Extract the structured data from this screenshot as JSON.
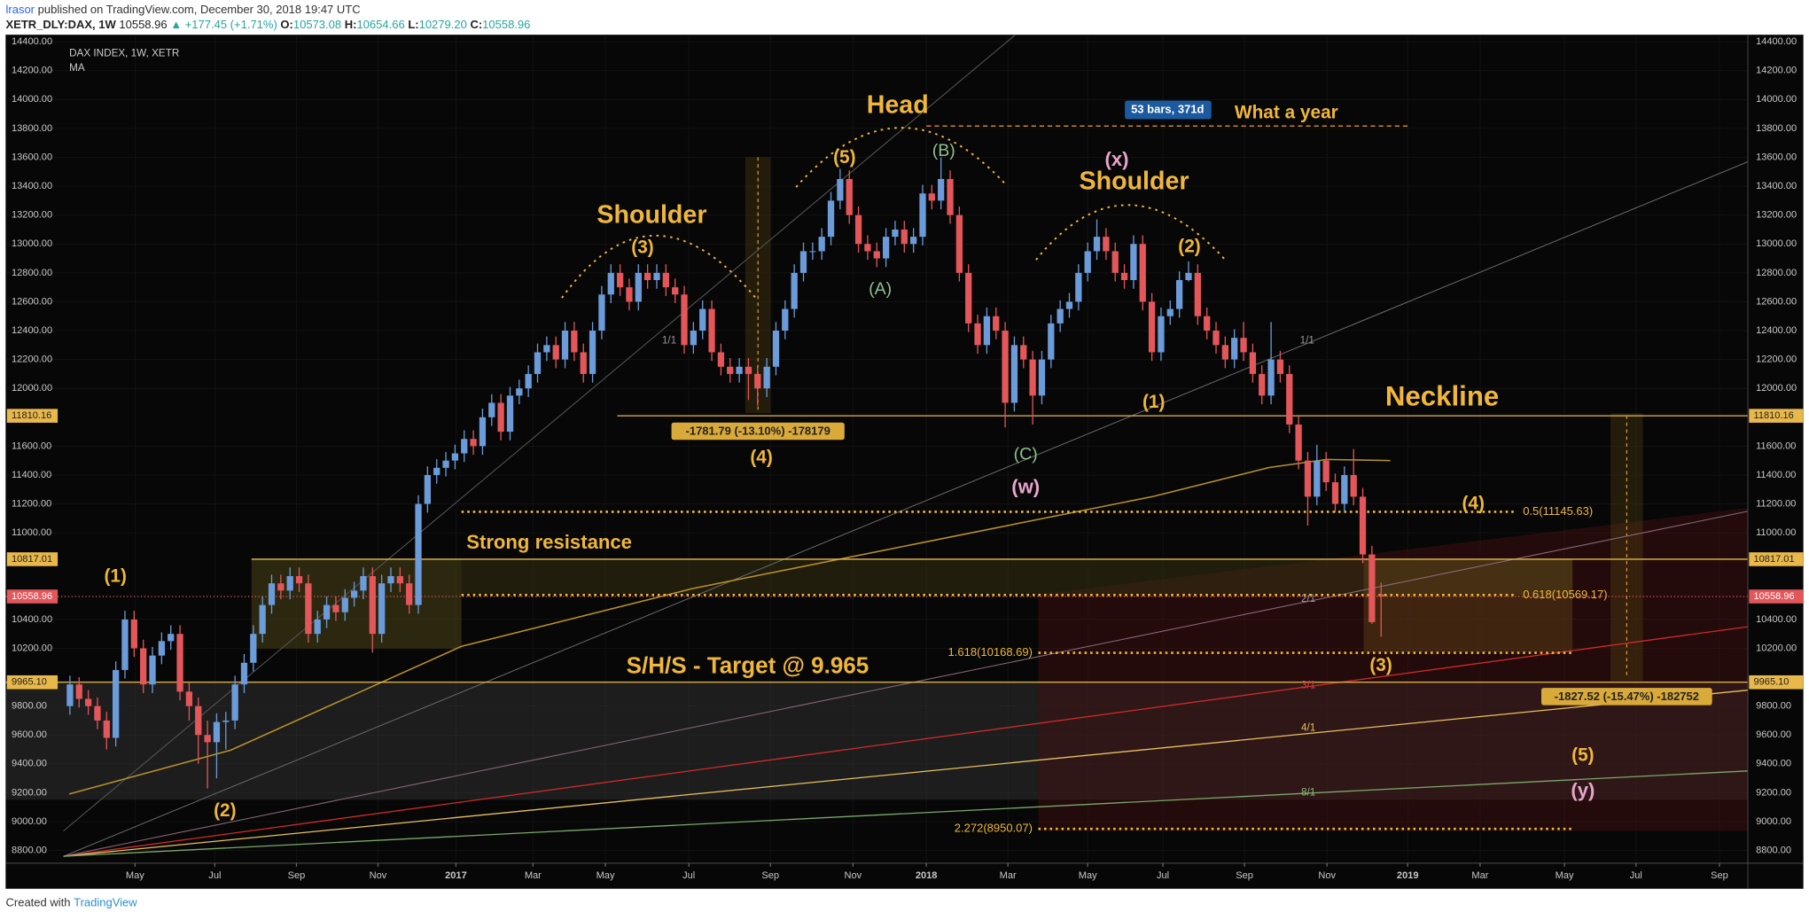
{
  "header": {
    "author": "lrasor",
    "published": "published on TradingView.com, December 30, 2018 19:47 UTC",
    "symbol": "XETR_DLY:DAX, 1W",
    "price": "10558.96",
    "change": "▲ +177.45 (+1.71%)",
    "ohlc": [
      {
        "label": "O:",
        "value": "10573.08"
      },
      {
        "label": "H:",
        "value": "10654.66"
      },
      {
        "label": "L:",
        "value": "10279.20"
      },
      {
        "label": "C:",
        "value": "10558.96"
      }
    ]
  },
  "footer": {
    "text": "Created with",
    "brand": "TradingView"
  },
  "chart_data": {
    "type": "candlestick",
    "title": "DAX INDEX, 1W, XETR",
    "indicator": "MA",
    "up_color": "#6b9bd8",
    "down_color": "#e3565a",
    "grid": true,
    "xlim": [
      -7,
      183
    ],
    "ylim": [
      8712,
      14448
    ],
    "xticks": [
      {
        "value": 7.1,
        "label": "May"
      },
      {
        "value": 15.8,
        "label": "Jul"
      },
      {
        "value": 24.7,
        "label": "Sep"
      },
      {
        "value": 33.6,
        "label": "Nov"
      },
      {
        "value": 42.1,
        "label": "2017"
      },
      {
        "value": 50.5,
        "label": "Mar"
      },
      {
        "value": 58.4,
        "label": "May"
      },
      {
        "value": 67.5,
        "label": "Jul"
      },
      {
        "value": 76.4,
        "label": "Sep"
      },
      {
        "value": 85.4,
        "label": "Nov"
      },
      {
        "value": 93.4,
        "label": "2018"
      },
      {
        "value": 102.3,
        "label": "Mar"
      },
      {
        "value": 111.0,
        "label": "May"
      },
      {
        "value": 119.2,
        "label": "Jul"
      },
      {
        "value": 128.1,
        "label": "Sep"
      },
      {
        "value": 137.1,
        "label": "Nov"
      },
      {
        "value": 145.9,
        "label": "2019"
      },
      {
        "value": 153.8,
        "label": "Mar"
      },
      {
        "value": 163.0,
        "label": "May"
      },
      {
        "value": 170.8,
        "label": "Jul"
      },
      {
        "value": 179.9,
        "label": "Sep"
      }
    ],
    "yticks": [
      {
        "value": 14400,
        "label": "14400.00"
      },
      {
        "value": 14200,
        "label": "14200.00"
      },
      {
        "value": 14000,
        "label": "14000.00"
      },
      {
        "value": 13800,
        "label": "13800.00"
      },
      {
        "value": 13600,
        "label": "13600.00"
      },
      {
        "value": 13400,
        "label": "13400.00"
      },
      {
        "value": 13200,
        "label": "13200.00"
      },
      {
        "value": 13000,
        "label": "13000.00"
      },
      {
        "value": 12800,
        "label": "12800.00"
      },
      {
        "value": 12600,
        "label": "12600.00"
      },
      {
        "value": 12400,
        "label": "12400.00"
      },
      {
        "value": 12200,
        "label": "12200.00"
      },
      {
        "value": 12000,
        "label": "12000.00"
      },
      {
        "value": 11600,
        "label": "11600.00"
      },
      {
        "value": 11400,
        "label": "11400.00"
      },
      {
        "value": 11200,
        "label": "11200.00"
      },
      {
        "value": 11000,
        "label": "11000.00"
      },
      {
        "value": 10400,
        "label": "10400.00"
      },
      {
        "value": 10200,
        "label": "10200.00"
      },
      {
        "value": 9800,
        "label": "9800.00"
      },
      {
        "value": 9600,
        "label": "9600.00"
      },
      {
        "value": 9400,
        "label": "9400.00"
      },
      {
        "value": 9200,
        "label": "9200.00"
      },
      {
        "value": 9000,
        "label": "9000.00"
      },
      {
        "value": 8800,
        "label": "8800.00"
      }
    ],
    "levels": [
      {
        "value": 11810.16,
        "label": "11810.16",
        "color": "#e8b84a"
      },
      {
        "value": 10817.01,
        "label": "10817.01",
        "color": "#e8b84a"
      },
      {
        "value": 10558.96,
        "label": "10558.96",
        "color": "#e3565a"
      },
      {
        "value": 9965.1,
        "label": "9965.10",
        "color": "#e8b84a"
      }
    ],
    "fibs": [
      {
        "value": 11145.63,
        "label": "0.5(11145.63)"
      },
      {
        "value": 10569.17,
        "label": "0.618(10569.17)"
      },
      {
        "value": 10168.69,
        "label": "1.618(10168.69)"
      },
      {
        "value": 8950.07,
        "label": "2.272(8950.07)"
      }
    ],
    "annotations": [
      "Shoulder",
      "Head",
      "Shoulder",
      "Neckline",
      "What a year",
      "53 bars, 371d",
      "Strong resistance",
      "S/H/S - Target @ 9.965",
      "-1781.79 (-13.10%) -178179",
      "-1827.52 (-15.47%) -182752",
      "(1)",
      "(2)",
      "(3)",
      "(4)",
      "(5)",
      "(A)",
      "(B)",
      "(C)",
      "(w)",
      "(x)",
      "(1)",
      "(2)",
      "(4)",
      "(3)",
      "(5)",
      "(y)",
      "1/1",
      "2/1",
      "3/1",
      "4/1",
      "8/1",
      "1/1"
    ],
    "candles": [
      [
        9800,
        10010,
        9740,
        9950
      ],
      [
        9950,
        10000,
        9790,
        9850
      ],
      [
        9850,
        9910,
        9740,
        9800
      ],
      [
        9800,
        9860,
        9640,
        9700
      ],
      [
        9700,
        9760,
        9500,
        9580
      ],
      [
        9580,
        10110,
        9520,
        10050
      ],
      [
        10050,
        10460,
        9990,
        10400
      ],
      [
        10400,
        10460,
        10140,
        10200
      ],
      [
        10200,
        10260,
        9890,
        9950
      ],
      [
        9950,
        10210,
        9890,
        10150
      ],
      [
        10150,
        10310,
        10090,
        10250
      ],
      [
        10250,
        10360,
        10190,
        10300
      ],
      [
        10300,
        10360,
        9840,
        9900
      ],
      [
        9900,
        9960,
        9700,
        9800
      ],
      [
        9800,
        9860,
        9400,
        9600
      ],
      [
        9600,
        9700,
        9230,
        9550
      ],
      [
        9550,
        9750,
        9300,
        9690
      ],
      [
        9690,
        9760,
        9500,
        9700
      ],
      [
        9700,
        10010,
        9640,
        9950
      ],
      [
        9950,
        10160,
        9890,
        10100
      ],
      [
        10100,
        10360,
        10040,
        10300
      ],
      [
        10300,
        10560,
        10240,
        10500
      ],
      [
        10500,
        10710,
        10440,
        10650
      ],
      [
        10650,
        10710,
        10540,
        10600
      ],
      [
        10600,
        10760,
        10540,
        10700
      ],
      [
        10700,
        10760,
        10590,
        10650
      ],
      [
        10650,
        10710,
        10240,
        10300
      ],
      [
        10300,
        10460,
        10240,
        10400
      ],
      [
        10400,
        10560,
        10340,
        10500
      ],
      [
        10500,
        10560,
        10390,
        10450
      ],
      [
        10450,
        10610,
        10390,
        10550
      ],
      [
        10550,
        10660,
        10490,
        10600
      ],
      [
        10600,
        10760,
        10540,
        10700
      ],
      [
        10700,
        10760,
        10170,
        10300
      ],
      [
        10300,
        10710,
        10240,
        10650
      ],
      [
        10650,
        10760,
        10590,
        10700
      ],
      [
        10700,
        10760,
        10590,
        10650
      ],
      [
        10650,
        10710,
        10440,
        10500
      ],
      [
        10500,
        11260,
        10440,
        11200
      ],
      [
        11200,
        11460,
        11140,
        11400
      ],
      [
        11400,
        11510,
        11340,
        11450
      ],
      [
        11450,
        11560,
        11390,
        11500
      ],
      [
        11500,
        11610,
        11440,
        11550
      ],
      [
        11550,
        11710,
        11490,
        11650
      ],
      [
        11650,
        11710,
        11540,
        11600
      ],
      [
        11600,
        11860,
        11540,
        11800
      ],
      [
        11800,
        11960,
        11740,
        11900
      ],
      [
        11900,
        11960,
        11640,
        11700
      ],
      [
        11700,
        12010,
        11640,
        11950
      ],
      [
        11950,
        12060,
        11890,
        12000
      ],
      [
        12000,
        12160,
        11940,
        12100
      ],
      [
        12100,
        12310,
        12040,
        12250
      ],
      [
        12250,
        12360,
        12190,
        12300
      ],
      [
        12300,
        12360,
        12140,
        12200
      ],
      [
        12200,
        12460,
        12140,
        12400
      ],
      [
        12400,
        12460,
        12190,
        12250
      ],
      [
        12250,
        12310,
        12040,
        12100
      ],
      [
        12100,
        12460,
        12040,
        12400
      ],
      [
        12400,
        12710,
        12340,
        12650
      ],
      [
        12650,
        12860,
        12590,
        12800
      ],
      [
        12800,
        12860,
        12640,
        12700
      ],
      [
        12700,
        12760,
        12540,
        12600
      ],
      [
        12600,
        12860,
        12540,
        12800
      ],
      [
        12800,
        12860,
        12690,
        12750
      ],
      [
        12750,
        12860,
        12690,
        12800
      ],
      [
        12800,
        12860,
        12640,
        12700
      ],
      [
        12700,
        12760,
        12590,
        12650
      ],
      [
        12650,
        12710,
        12240,
        12300
      ],
      [
        12300,
        12460,
        12240,
        12400
      ],
      [
        12400,
        12610,
        12340,
        12550
      ],
      [
        12550,
        12610,
        12190,
        12250
      ],
      [
        12250,
        12310,
        12090,
        12150
      ],
      [
        12150,
        12210,
        12040,
        12100
      ],
      [
        12100,
        12210,
        12040,
        12150
      ],
      [
        12150,
        12210,
        11920,
        12100
      ],
      [
        12100,
        12160,
        11880,
        12000
      ],
      [
        12000,
        12210,
        11940,
        12150
      ],
      [
        12150,
        12460,
        12090,
        12400
      ],
      [
        12400,
        12610,
        12340,
        12550
      ],
      [
        12550,
        12860,
        12490,
        12800
      ],
      [
        12800,
        13010,
        12740,
        12950
      ],
      [
        12950,
        13010,
        12890,
        12950
      ],
      [
        12950,
        13110,
        12890,
        13050
      ],
      [
        13050,
        13360,
        12990,
        13300
      ],
      [
        13300,
        13520,
        13240,
        13450
      ],
      [
        13450,
        13510,
        13140,
        13200
      ],
      [
        13200,
        13260,
        12940,
        13000
      ],
      [
        13000,
        13060,
        12890,
        12950
      ],
      [
        12950,
        13010,
        12840,
        12900
      ],
      [
        12900,
        13110,
        12840,
        13050
      ],
      [
        13050,
        13160,
        12990,
        13100
      ],
      [
        13100,
        13160,
        12940,
        13000
      ],
      [
        13000,
        13110,
        12940,
        13050
      ],
      [
        13050,
        13410,
        12990,
        13350
      ],
      [
        13350,
        13410,
        13240,
        13300
      ],
      [
        13300,
        13600,
        13240,
        13450
      ],
      [
        13450,
        13510,
        13140,
        13200
      ],
      [
        13200,
        13260,
        12740,
        12800
      ],
      [
        12800,
        12860,
        12390,
        12450
      ],
      [
        12450,
        12510,
        12240,
        12300
      ],
      [
        12300,
        12560,
        12240,
        12500
      ],
      [
        12500,
        12560,
        12340,
        12400
      ],
      [
        12400,
        12460,
        11730,
        11900
      ],
      [
        11900,
        12360,
        11840,
        12300
      ],
      [
        12300,
        12360,
        12140,
        12200
      ],
      [
        12200,
        12260,
        11750,
        11950
      ],
      [
        11950,
        12260,
        11890,
        12200
      ],
      [
        12200,
        12510,
        12140,
        12450
      ],
      [
        12450,
        12610,
        12390,
        12550
      ],
      [
        12550,
        12660,
        12490,
        12600
      ],
      [
        12600,
        12860,
        12540,
        12800
      ],
      [
        12800,
        13010,
        12740,
        12950
      ],
      [
        12950,
        13170,
        12890,
        13050
      ],
      [
        13050,
        13110,
        12890,
        12950
      ],
      [
        12950,
        13010,
        12740,
        12800
      ],
      [
        12800,
        12860,
        12690,
        12750
      ],
      [
        12750,
        13060,
        12690,
        13000
      ],
      [
        13000,
        13060,
        12540,
        12600
      ],
      [
        12600,
        12660,
        12190,
        12250
      ],
      [
        12250,
        12560,
        12190,
        12500
      ],
      [
        12500,
        12610,
        12440,
        12550
      ],
      [
        12550,
        12810,
        12490,
        12750
      ],
      [
        12750,
        12880,
        12740,
        12800
      ],
      [
        12800,
        12860,
        12440,
        12500
      ],
      [
        12500,
        12560,
        12340,
        12400
      ],
      [
        12400,
        12460,
        12240,
        12300
      ],
      [
        12300,
        12360,
        12140,
        12200
      ],
      [
        12200,
        12410,
        12140,
        12350
      ],
      [
        12350,
        12460,
        12190,
        12250
      ],
      [
        12250,
        12310,
        12040,
        12100
      ],
      [
        12100,
        12160,
        11890,
        11950
      ],
      [
        11950,
        12460,
        11890,
        12200
      ],
      [
        12200,
        12260,
        12040,
        12100
      ],
      [
        12100,
        12160,
        11690,
        11750
      ],
      [
        11750,
        11810,
        11440,
        11500
      ],
      [
        11500,
        11560,
        11050,
        11250
      ],
      [
        11250,
        11610,
        11190,
        11500
      ],
      [
        11500,
        11560,
        11290,
        11350
      ],
      [
        11350,
        11410,
        11140,
        11200
      ],
      [
        11200,
        11460,
        11140,
        11400
      ],
      [
        11400,
        11580,
        11190,
        11250
      ],
      [
        11250,
        11310,
        10790,
        10850
      ],
      [
        10850,
        10910,
        10370,
        10381.51
      ],
      [
        10573.08,
        10654.66,
        10279.2,
        10558.96
      ]
    ]
  }
}
